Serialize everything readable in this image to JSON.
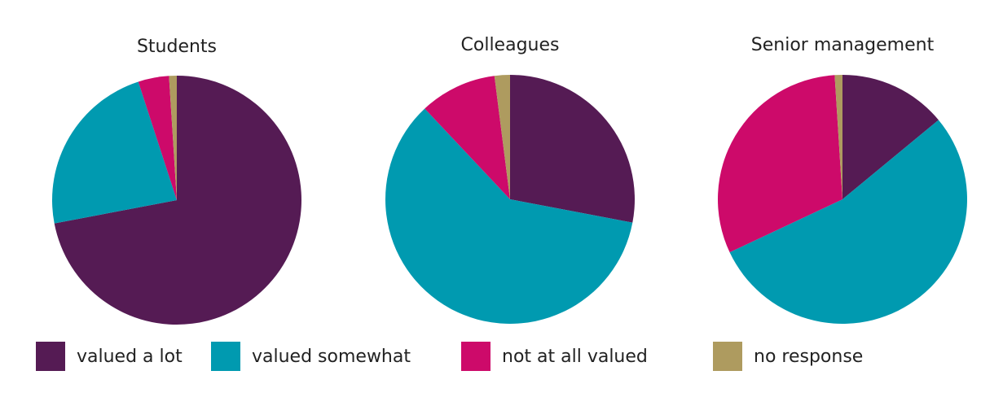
{
  "chart_data": [
    {
      "type": "pie",
      "title": "Students",
      "categories": [
        "valued a lot",
        "valued somewhat",
        "not at all valued",
        "no response"
      ],
      "values": [
        72,
        23,
        4,
        1
      ]
    },
    {
      "type": "pie",
      "title": "Colleagues",
      "categories": [
        "valued a lot",
        "valued somewhat",
        "not at all valued",
        "no response"
      ],
      "values": [
        28,
        60,
        10,
        2
      ]
    },
    {
      "type": "pie",
      "title": "Senior management",
      "categories": [
        "valued a lot",
        "valued somewhat",
        "not at all valued",
        "no response"
      ],
      "values": [
        14,
        54,
        31,
        1
      ]
    }
  ],
  "legend": {
    "placement": "bottom",
    "items": [
      {
        "label": "valued a lot",
        "color": "#551b54"
      },
      {
        "label": "valued somewhat",
        "color": "#009ab0"
      },
      {
        "label": "not at all valued",
        "color": "#cd0a6a"
      },
      {
        "label": "no response",
        "color": "#ae9b5f"
      }
    ]
  }
}
